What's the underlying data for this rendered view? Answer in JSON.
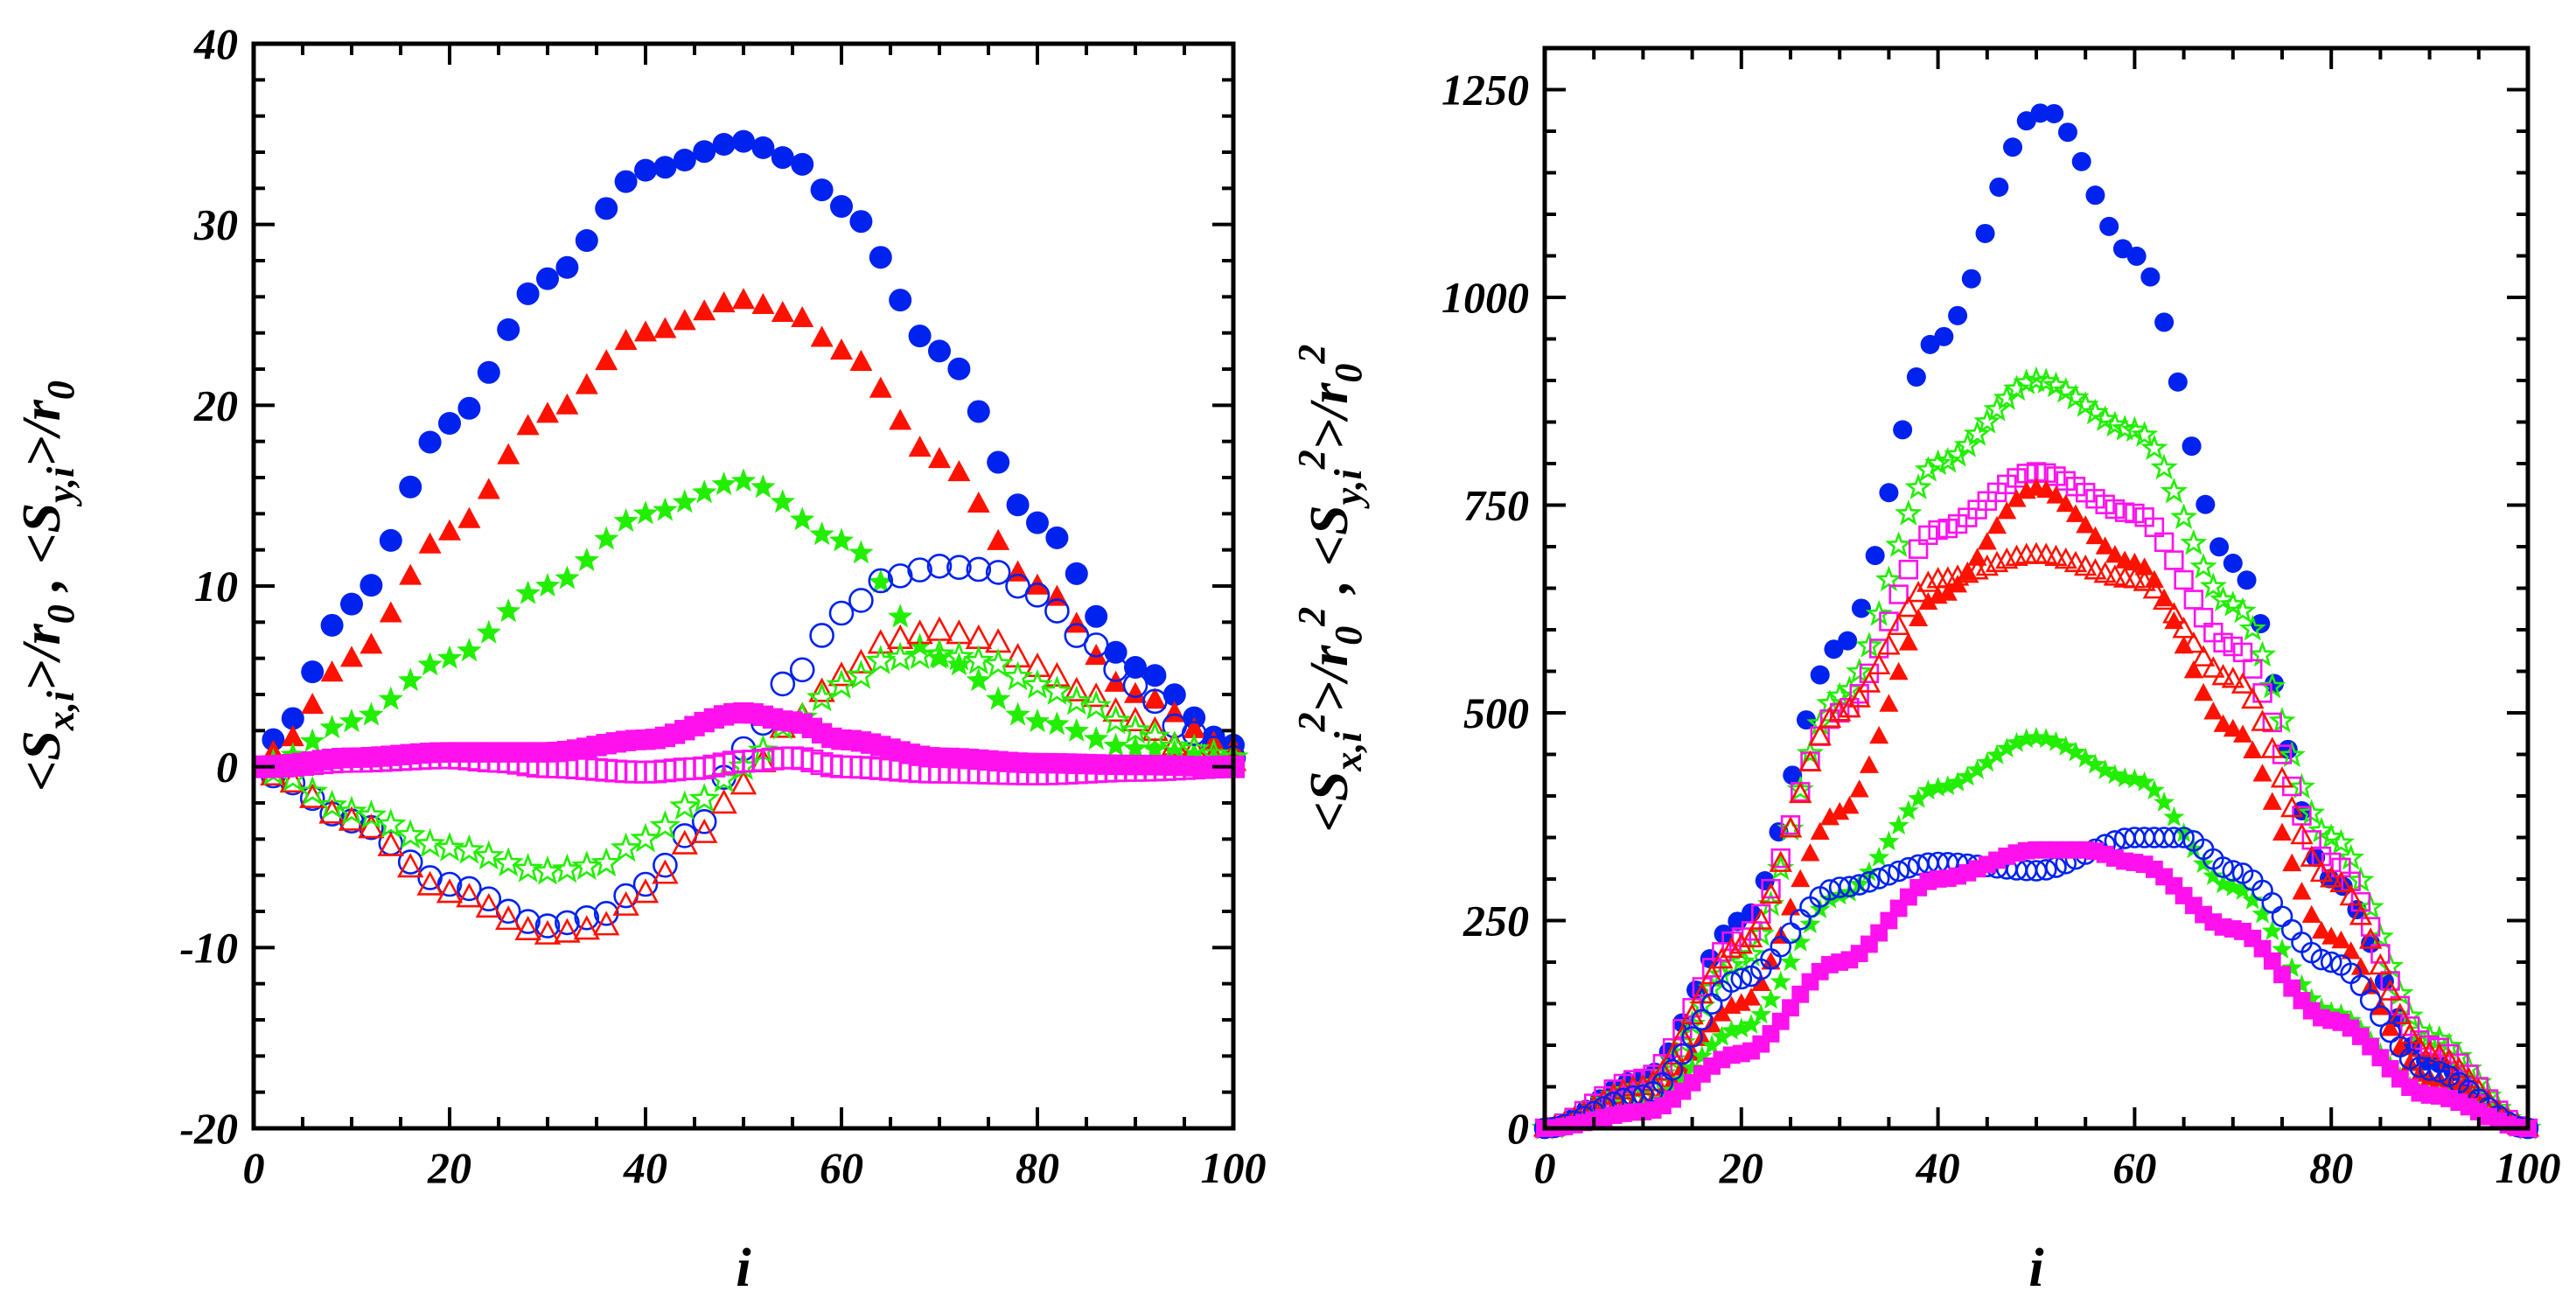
{
  "chart_data": [
    {
      "type": "scatter",
      "panel": "left",
      "xlabel": "i",
      "ylabel": "<S_{x,i}>/r_0 ,  <S_{y,i}>/r_0",
      "xlim": [
        0,
        100
      ],
      "ylim": [
        -20,
        40
      ],
      "x_ticks": [
        0,
        20,
        40,
        60,
        80,
        100
      ],
      "y_ticks": [
        -20,
        -10,
        0,
        10,
        20,
        30,
        40
      ],
      "x_tick_labels": [
        "0",
        "20",
        "40",
        "60",
        "80",
        "100"
      ],
      "y_tick_labels": [
        "-20",
        "-10",
        "0",
        "10",
        "20",
        "30",
        "40"
      ],
      "grid": false,
      "legend": "none",
      "series": [
        {
          "marker": "filled-circle",
          "color": "#0022ee",
          "x_step": 2,
          "anchors": [
            [
              2,
              1.5
            ],
            [
              10,
              9
            ],
            [
              20,
              19
            ],
            [
              30,
              27
            ],
            [
              40,
              33
            ],
            [
              50,
              34.6
            ],
            [
              55,
              33.6
            ],
            [
              60,
              31
            ],
            [
              70,
              23
            ],
            [
              80,
              13.5
            ],
            [
              90,
              5.5
            ],
            [
              100,
              1.2
            ]
          ]
        },
        {
          "marker": "filled-triangle",
          "color": "#ff1100",
          "x_step": 2,
          "anchors": [
            [
              2,
              0.8
            ],
            [
              10,
              6
            ],
            [
              20,
              13
            ],
            [
              30,
              19.5
            ],
            [
              40,
              24
            ],
            [
              50,
              25.8
            ],
            [
              55,
              25
            ],
            [
              60,
              23
            ],
            [
              70,
              17
            ],
            [
              80,
              10
            ],
            [
              90,
              4
            ],
            [
              100,
              1
            ]
          ]
        },
        {
          "marker": "filled-star",
          "color": "#22ee00",
          "x_step": 2,
          "anchors": [
            [
              2,
              0.3
            ],
            [
              10,
              2.5
            ],
            [
              20,
              6
            ],
            [
              30,
              10
            ],
            [
              40,
              14
            ],
            [
              50,
              15.8
            ],
            [
              60,
              12.5
            ],
            [
              70,
              6
            ],
            [
              80,
              2.5
            ],
            [
              90,
              1
            ],
            [
              100,
              0.5
            ]
          ]
        },
        {
          "marker": "open-circle",
          "color": "#0022ee",
          "x_step": 2,
          "anchors": [
            [
              2,
              -0.5
            ],
            [
              10,
              -3
            ],
            [
              20,
              -6.5
            ],
            [
              30,
              -8.8
            ],
            [
              35,
              -8.3
            ],
            [
              40,
              -6.5
            ],
            [
              45,
              -3.5
            ],
            [
              50,
              1
            ],
            [
              55,
              5
            ],
            [
              60,
              8.5
            ],
            [
              65,
              10.5
            ],
            [
              70,
              11.1
            ],
            [
              75,
              10.9
            ],
            [
              80,
              9.5
            ],
            [
              85,
              7
            ],
            [
              90,
              4.5
            ],
            [
              95,
              2
            ],
            [
              100,
              0.5
            ]
          ]
        },
        {
          "marker": "open-triangle",
          "color": "#ff1100",
          "x_step": 2,
          "anchors": [
            [
              2,
              -0.5
            ],
            [
              10,
              -3
            ],
            [
              20,
              -7
            ],
            [
              30,
              -9.3
            ],
            [
              35,
              -9
            ],
            [
              40,
              -7
            ],
            [
              45,
              -4
            ],
            [
              50,
              -1
            ],
            [
              55,
              2.5
            ],
            [
              60,
              5
            ],
            [
              65,
              7
            ],
            [
              70,
              7.5
            ],
            [
              75,
              7
            ],
            [
              80,
              5.5
            ],
            [
              85,
              4
            ],
            [
              90,
              2.5
            ],
            [
              95,
              1
            ],
            [
              100,
              0.3
            ]
          ]
        },
        {
          "marker": "open-star",
          "color": "#22ee00",
          "x_step": 2,
          "anchors": [
            [
              2,
              -0.3
            ],
            [
              10,
              -2.5
            ],
            [
              20,
              -4.5
            ],
            [
              30,
              -5.8
            ],
            [
              35,
              -5.5
            ],
            [
              40,
              -4
            ],
            [
              45,
              -2
            ],
            [
              50,
              0
            ],
            [
              55,
              2.5
            ],
            [
              60,
              4.5
            ],
            [
              65,
              6
            ],
            [
              70,
              6.2
            ],
            [
              75,
              5.8
            ],
            [
              80,
              4.5
            ],
            [
              85,
              3.5
            ],
            [
              90,
              2
            ],
            [
              95,
              1
            ],
            [
              100,
              0.5
            ]
          ]
        },
        {
          "marker": "filled-square",
          "color": "#ff11ee",
          "x_step": 1,
          "anchors": [
            [
              1,
              0
            ],
            [
              10,
              0.5
            ],
            [
              20,
              0.8
            ],
            [
              30,
              0.8
            ],
            [
              40,
              1.5
            ],
            [
              50,
              3
            ],
            [
              55,
              2.5
            ],
            [
              60,
              1.5
            ],
            [
              70,
              0.5
            ],
            [
              80,
              0.2
            ],
            [
              90,
              0.1
            ],
            [
              100,
              0
            ]
          ]
        },
        {
          "marker": "open-square",
          "color": "#ff11ee",
          "x_step": 1,
          "anchors": [
            [
              1,
              0
            ],
            [
              10,
              0.3
            ],
            [
              20,
              0.5
            ],
            [
              25,
              0.3
            ],
            [
              30,
              0
            ],
            [
              40,
              -0.3
            ],
            [
              45,
              -0.1
            ],
            [
              50,
              0.3
            ],
            [
              55,
              0.5
            ],
            [
              60,
              0
            ],
            [
              70,
              -0.3
            ],
            [
              80,
              -0.4
            ],
            [
              90,
              -0.2
            ],
            [
              100,
              0
            ]
          ]
        }
      ]
    },
    {
      "type": "scatter",
      "panel": "right",
      "xlabel": "i",
      "ylabel": "<S_{x,i}^2>/r_0^2 ,  <S_{y,i}^2>/r_0^2",
      "xlim": [
        0,
        100
      ],
      "ylim": [
        0,
        1300
      ],
      "x_ticks": [
        0,
        20,
        40,
        60,
        80,
        100
      ],
      "y_ticks": [
        0,
        250,
        500,
        750,
        1000,
        1250
      ],
      "x_tick_labels": [
        "0",
        "20",
        "40",
        "60",
        "80",
        "100"
      ],
      "y_tick_labels": [
        "0",
        "250",
        "500",
        "750",
        "1000",
        "1250"
      ],
      "grid": false,
      "legend": "none",
      "series": [
        {
          "marker": "filled-circle",
          "color": "#0022ee",
          "x_step": 1.4,
          "anchors": [
            [
              0,
              0
            ],
            [
              10,
              60
            ],
            [
              20,
              250
            ],
            [
              30,
              580
            ],
            [
              40,
              950
            ],
            [
              50,
              1220
            ],
            [
              51,
              1225
            ],
            [
              60,
              1050
            ],
            [
              70,
              680
            ],
            [
              80,
              300
            ],
            [
              90,
              80
            ],
            [
              100,
              0
            ]
          ]
        },
        {
          "marker": "open-star",
          "color": "#22ee00",
          "x_step": 1,
          "anchors": [
            [
              0,
              0
            ],
            [
              10,
              50
            ],
            [
              20,
              200
            ],
            [
              30,
              520
            ],
            [
              40,
              800
            ],
            [
              50,
              900
            ],
            [
              60,
              840
            ],
            [
              70,
              630
            ],
            [
              80,
              350
            ],
            [
              90,
              110
            ],
            [
              100,
              0
            ]
          ]
        },
        {
          "marker": "open-square",
          "color": "#ff11ee",
          "x_step": 1,
          "anchors": [
            [
              0,
              0
            ],
            [
              10,
              60
            ],
            [
              20,
              230
            ],
            [
              30,
              500
            ],
            [
              40,
              720
            ],
            [
              50,
              790
            ],
            [
              60,
              740
            ],
            [
              70,
              580
            ],
            [
              80,
              320
            ],
            [
              90,
              100
            ],
            [
              100,
              0
            ]
          ]
        },
        {
          "marker": "filled-triangle",
          "color": "#ff1100",
          "x_step": 1,
          "anchors": [
            [
              0,
              0
            ],
            [
              10,
              30
            ],
            [
              20,
              150
            ],
            [
              30,
              380
            ],
            [
              40,
              640
            ],
            [
              50,
              770
            ],
            [
              60,
              680
            ],
            [
              70,
              480
            ],
            [
              80,
              230
            ],
            [
              90,
              60
            ],
            [
              100,
              0
            ]
          ]
        },
        {
          "marker": "open-triangle",
          "color": "#ff1100",
          "x_step": 1,
          "anchors": [
            [
              0,
              0
            ],
            [
              10,
              50
            ],
            [
              20,
              220
            ],
            [
              30,
              500
            ],
            [
              40,
              660
            ],
            [
              50,
              690
            ],
            [
              60,
              660
            ],
            [
              70,
              540
            ],
            [
              80,
              300
            ],
            [
              90,
              90
            ],
            [
              100,
              0
            ]
          ]
        },
        {
          "marker": "filled-star",
          "color": "#22ee00",
          "x_step": 1,
          "anchors": [
            [
              0,
              0
            ],
            [
              10,
              25
            ],
            [
              20,
              120
            ],
            [
              30,
              280
            ],
            [
              40,
              410
            ],
            [
              50,
              470
            ],
            [
              60,
              420
            ],
            [
              70,
              290
            ],
            [
              80,
              140
            ],
            [
              90,
              40
            ],
            [
              100,
              0
            ]
          ]
        },
        {
          "marker": "open-circle",
          "color": "#0022ee",
          "x_step": 1,
          "anchors": [
            [
              0,
              0
            ],
            [
              10,
              40
            ],
            [
              20,
              180
            ],
            [
              30,
              290
            ],
            [
              40,
              320
            ],
            [
              50,
              310
            ],
            [
              60,
              350
            ],
            [
              65,
              350
            ],
            [
              70,
              310
            ],
            [
              80,
              200
            ],
            [
              90,
              70
            ],
            [
              100,
              0
            ]
          ]
        },
        {
          "marker": "filled-square",
          "color": "#ff11ee",
          "x_step": 1,
          "anchors": [
            [
              0,
              0
            ],
            [
              10,
              20
            ],
            [
              20,
              90
            ],
            [
              30,
              200
            ],
            [
              40,
              300
            ],
            [
              50,
              335
            ],
            [
              55,
              335
            ],
            [
              60,
              320
            ],
            [
              70,
              240
            ],
            [
              80,
              130
            ],
            [
              90,
              40
            ],
            [
              100,
              0
            ]
          ]
        }
      ]
    }
  ]
}
